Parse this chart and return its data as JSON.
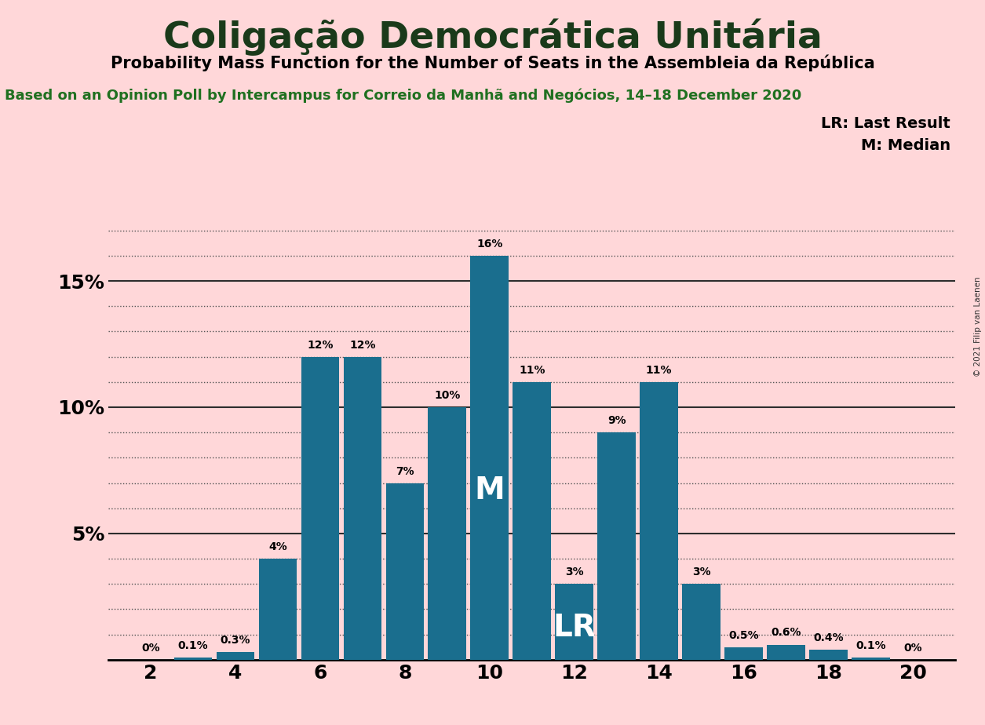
{
  "title": "Coligação Democrática Unitária",
  "subtitle": "Probability Mass Function for the Number of Seats in the Assembleia da República",
  "source_line": "Based on an Opinion Poll by Intercampus for Correio da Manhã and Negócios, 14–18 December 2020",
  "copyright": "© 2021 Filip van Laenen",
  "seats": [
    2,
    3,
    4,
    5,
    6,
    7,
    8,
    9,
    10,
    11,
    12,
    13,
    14,
    15,
    16,
    17,
    18,
    19,
    20
  ],
  "probabilities": [
    0.0,
    0.001,
    0.003,
    0.04,
    0.12,
    0.12,
    0.07,
    0.1,
    0.16,
    0.11,
    0.03,
    0.09,
    0.11,
    0.03,
    0.005,
    0.006,
    0.004,
    0.001,
    0.0
  ],
  "labels": [
    "0%",
    "0.1%",
    "0.3%",
    "4%",
    "12%",
    "12%",
    "7%",
    "10%",
    "16%",
    "11%",
    "3%",
    "9%",
    "11%",
    "3%",
    "0.5%",
    "0.6%",
    "0.4%",
    "0.1%",
    "0%"
  ],
  "bar_color": "#1a6e8e",
  "background_color": "#ffd7d9",
  "text_color": "#1a3a1a",
  "median_seat": 10,
  "last_result_seat": 12,
  "legend_lr": "LR: Last Result",
  "legend_m": "M: Median",
  "ytick_major": [
    0.05,
    0.1,
    0.15
  ],
  "ytick_minor": [
    0.01,
    0.02,
    0.03,
    0.04,
    0.06,
    0.07,
    0.08,
    0.09,
    0.11,
    0.12,
    0.13,
    0.14,
    0.16,
    0.17
  ],
  "xticks": [
    2,
    4,
    6,
    8,
    10,
    12,
    14,
    16,
    18,
    20
  ],
  "ylim": [
    0,
    0.178
  ],
  "title_fontsize": 34,
  "subtitle_fontsize": 15,
  "source_fontsize": 13,
  "label_fontsize": 10,
  "tick_fontsize": 18,
  "legend_fontsize": 14,
  "bar_width": 0.9
}
